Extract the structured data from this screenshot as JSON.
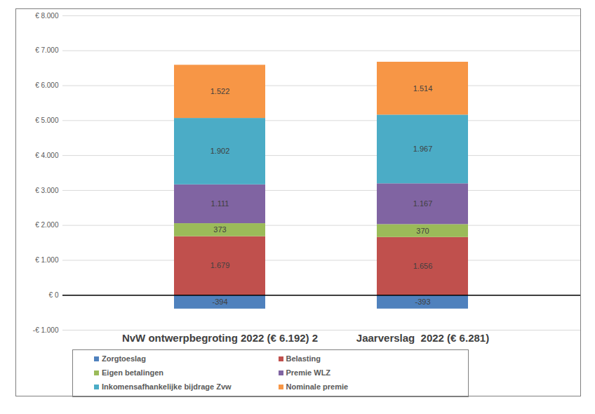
{
  "chart_data": {
    "type": "bar",
    "stacked": true,
    "data_labels": true,
    "grid": true,
    "legend": "bottom",
    "categories": [
      "NvW ontwerpbegroting 2022 (€ 6.192) 2",
      "Jaarverslag  2022 (€ 6.281)"
    ],
    "ylim": [
      -1000,
      8000
    ],
    "yticks": [
      {
        "value": -1000,
        "label": "-€ 1.000"
      },
      {
        "value": 0,
        "label": "€ 0"
      },
      {
        "value": 1000,
        "label": "€ 1.000"
      },
      {
        "value": 2000,
        "label": "€ 2.000"
      },
      {
        "value": 3000,
        "label": "€ 3.000"
      },
      {
        "value": 4000,
        "label": "€ 4.000"
      },
      {
        "value": 5000,
        "label": "€ 5.000"
      },
      {
        "value": 6000,
        "label": "€ 6.000"
      },
      {
        "value": 7000,
        "label": "€ 7.000"
      },
      {
        "value": 8000,
        "label": "€ 8.000"
      }
    ],
    "series": [
      {
        "name": "Zorgtoeslag",
        "color": "#4f81bd",
        "values": [
          -394,
          -393
        ]
      },
      {
        "name": "Belasting",
        "color": "#c0504d",
        "values": [
          1679,
          1656
        ],
        "value_labels": [
          "1.679",
          "1.656"
        ]
      },
      {
        "name": "Eigen betalingen",
        "color": "#9bbb59",
        "values": [
          373,
          370
        ]
      },
      {
        "name": "Premie WLZ",
        "color": "#8064a2",
        "values": [
          1111,
          1167
        ],
        "value_labels": [
          "1.111",
          "1.167"
        ]
      },
      {
        "name": "Inkomensafhankelijke bijdrage Zvw",
        "color": "#4bacc6",
        "values": [
          1902,
          1967
        ],
        "value_labels": [
          "1.902",
          "1.967"
        ]
      },
      {
        "name": "Nominale premie",
        "color": "#f79646",
        "values": [
          1522,
          1514
        ],
        "value_labels": [
          "1.522",
          "1.514"
        ]
      }
    ]
  }
}
